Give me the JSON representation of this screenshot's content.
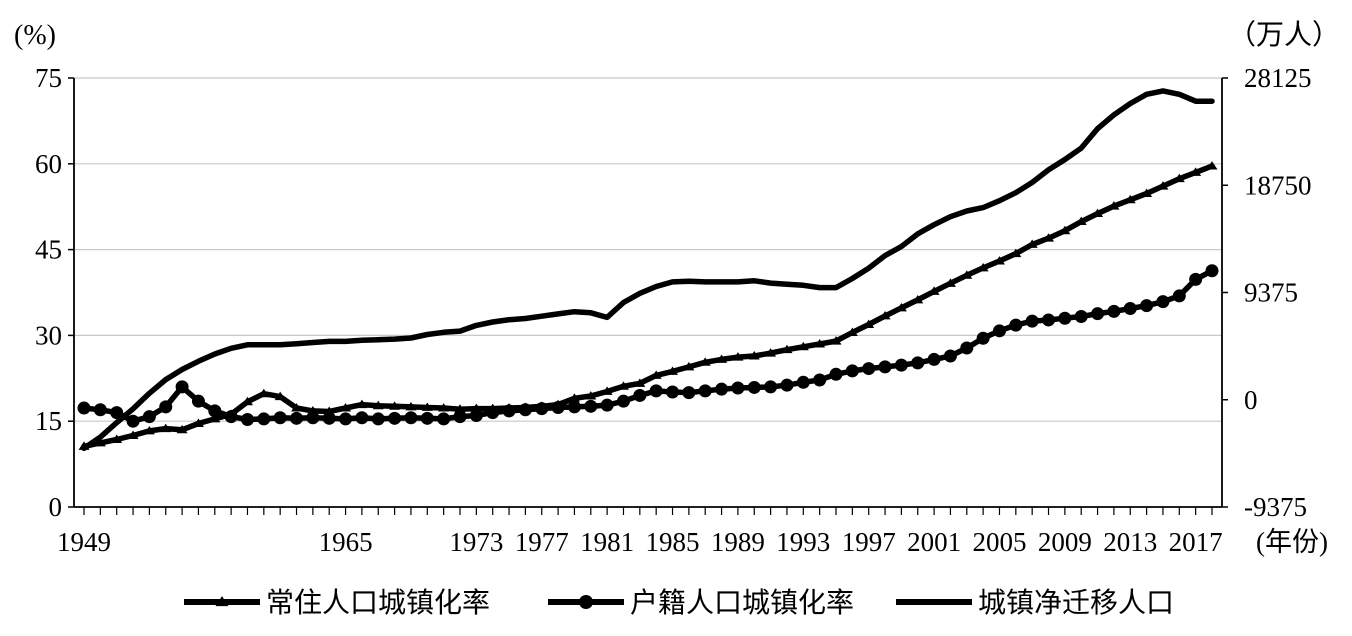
{
  "chart_data": {
    "type": "line",
    "left_unit": "(%)",
    "right_unit": "（万人）",
    "x_unit": "(年份)",
    "left_ticks": [
      "75",
      "60",
      "45",
      "30",
      "15",
      "0"
    ],
    "right_ticks": [
      "28125",
      "18750",
      "9375",
      "0",
      "-9375"
    ],
    "x_ticks": [
      "1949",
      "1965",
      "1973",
      "1977",
      "1981",
      "1985",
      "1989",
      "1993",
      "1997",
      "2001",
      "2005",
      "2009",
      "2013",
      "2017"
    ],
    "ylim_left": [
      0,
      75
    ],
    "ylim_right": [
      -9375,
      28125
    ],
    "grid": "horizontal",
    "legend_position": "bottom",
    "categories": [
      "1949",
      "1950",
      "1951",
      "1952",
      "1953",
      "1954",
      "1955",
      "1956",
      "1957",
      "1958",
      "1959",
      "1960",
      "1961",
      "1962",
      "1963",
      "1964",
      "1965",
      "1966",
      "1967",
      "1968",
      "1969",
      "1970",
      "1971",
      "1972",
      "1973",
      "1974",
      "1975",
      "1976",
      "1977",
      "1978",
      "1979",
      "1980",
      "1981",
      "1982",
      "1983",
      "1984",
      "1985",
      "1986",
      "1987",
      "1988",
      "1989",
      "1990",
      "1991",
      "1992",
      "1993",
      "1994",
      "1995",
      "1996",
      "1997",
      "1998",
      "1999",
      "2000",
      "2001",
      "2002",
      "2003",
      "2004",
      "2005",
      "2006",
      "2007",
      "2008",
      "2009",
      "2010",
      "2011",
      "2012",
      "2013",
      "2014",
      "2015",
      "2016",
      "2017",
      "2018"
    ],
    "series": [
      {
        "name": "常住人口城镇化率",
        "axis": "left",
        "marker": "triangle",
        "values": [
          10.6,
          11.2,
          11.8,
          12.5,
          13.3,
          13.7,
          13.5,
          14.6,
          15.4,
          16.2,
          18.4,
          19.8,
          19.3,
          17.3,
          16.8,
          16.7,
          17.3,
          17.9,
          17.7,
          17.6,
          17.5,
          17.4,
          17.3,
          17.1,
          17.2,
          17.2,
          17.3,
          17.4,
          17.6,
          17.9,
          19.0,
          19.4,
          20.2,
          21.1,
          21.6,
          23.0,
          23.7,
          24.5,
          25.3,
          25.8,
          26.2,
          26.4,
          26.9,
          27.5,
          28.0,
          28.5,
          29.0,
          30.5,
          31.9,
          33.4,
          34.8,
          36.2,
          37.7,
          39.1,
          40.5,
          41.8,
          43.0,
          44.3,
          45.9,
          47.0,
          48.3,
          49.9,
          51.3,
          52.6,
          53.7,
          54.8,
          56.1,
          57.4,
          58.5,
          59.6
        ]
      },
      {
        "name": "户籍人口城镇化率",
        "axis": "left",
        "marker": "circle",
        "values": [
          17.3,
          17.0,
          16.5,
          15.0,
          15.8,
          17.5,
          21.0,
          18.5,
          16.8,
          15.8,
          15.3,
          15.4,
          15.6,
          15.5,
          15.6,
          15.5,
          15.4,
          15.6,
          15.4,
          15.5,
          15.6,
          15.5,
          15.4,
          15.8,
          16.0,
          16.5,
          16.8,
          17.0,
          17.2,
          17.4,
          17.5,
          17.6,
          17.8,
          18.5,
          19.5,
          20.3,
          20.1,
          20.0,
          20.3,
          20.6,
          20.8,
          20.9,
          21.0,
          21.3,
          21.8,
          22.2,
          23.2,
          23.8,
          24.2,
          24.5,
          24.8,
          25.2,
          25.8,
          26.4,
          27.8,
          29.5,
          30.8,
          31.8,
          32.5,
          32.7,
          33.0,
          33.3,
          33.8,
          34.2,
          34.7,
          35.2,
          35.9,
          36.9,
          39.8,
          41.3
        ]
      },
      {
        "name": "城镇净迁移人口",
        "axis": "right",
        "marker": "none",
        "values": [
          -4240,
          -3275,
          -1995,
          -800,
          560,
          1760,
          2640,
          3360,
          4000,
          4500,
          4800,
          4800,
          4800,
          4900,
          5000,
          5100,
          5100,
          5200,
          5250,
          5300,
          5400,
          5700,
          5900,
          6000,
          6500,
          6800,
          7000,
          7100,
          7300,
          7500,
          7700,
          7600,
          7200,
          8500,
          9300,
          9900,
          10300,
          10350,
          10300,
          10300,
          10300,
          10400,
          10200,
          10100,
          10000,
          9800,
          9800,
          10600,
          11500,
          12600,
          13400,
          14500,
          15300,
          16000,
          16500,
          16800,
          17400,
          18100,
          19000,
          20100,
          21000,
          22000,
          23700,
          24900,
          25900,
          26700,
          27000,
          26700,
          26100,
          26100
        ]
      }
    ],
    "left_series_values_note": null
  }
}
